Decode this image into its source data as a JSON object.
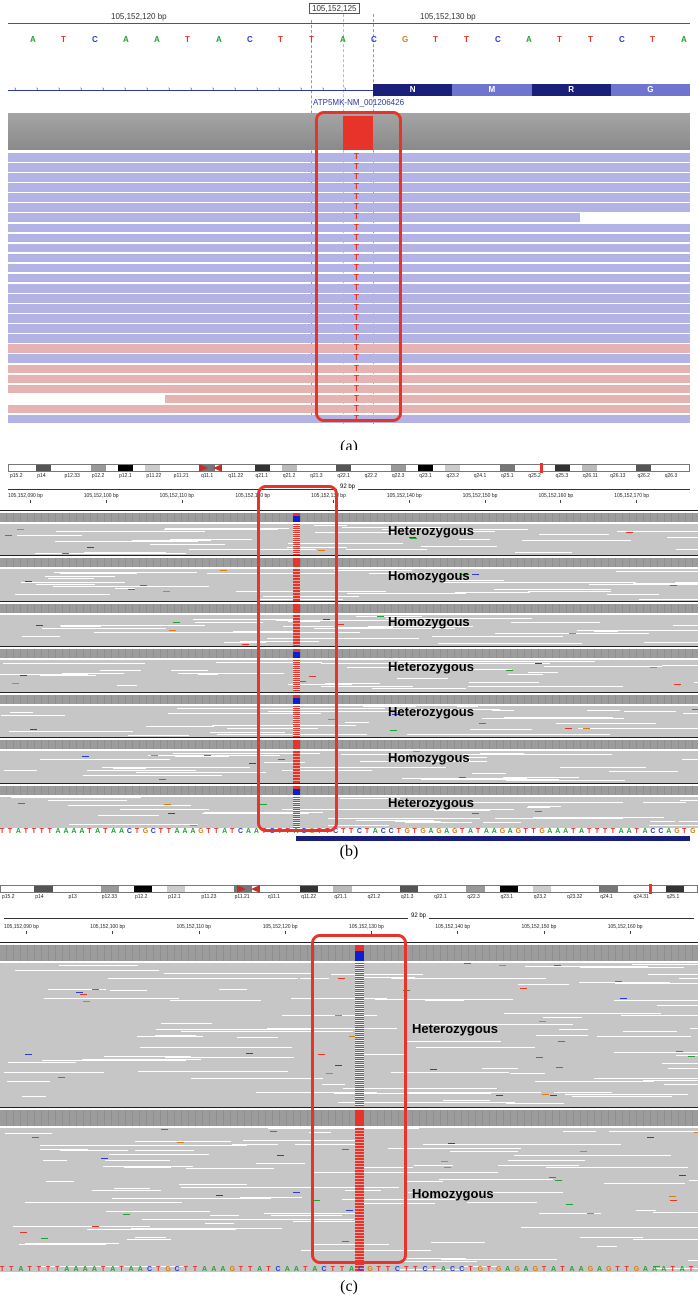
{
  "panel_a": {
    "coord_left": "105,152,120 bp",
    "coord_center": "105,152,125",
    "coord_right": "105,152,130 bp",
    "sequence": [
      "A",
      "T",
      "C",
      "A",
      "A",
      "T",
      "A",
      "C",
      "T",
      "T",
      "A",
      "C",
      "G",
      "T",
      "T",
      "C",
      "A",
      "T",
      "T",
      "C",
      "T",
      "A",
      "C"
    ],
    "gene_label": "ATP5MK-NM_001206426",
    "amino_acids": [
      "N",
      "M",
      "R",
      "G"
    ],
    "variant_base": "T",
    "read_count": 27,
    "caption": "(a)"
  },
  "panel_b": {
    "span_label": "92 bp",
    "cytobands": [
      "p15.2",
      "p14",
      "p12.33",
      "p12.2",
      "p12.1",
      "p11.22",
      "p11.21",
      "q11.1",
      "q11.22",
      "q21.1",
      "q21.2",
      "q21.3",
      "q22.1",
      "q22.2",
      "q22.3",
      "q23.1",
      "q23.2",
      "q24.1",
      "q25.1",
      "q25.2",
      "q25.3",
      "q26.11",
      "q26.13",
      "q26.2",
      "q26.3"
    ],
    "coords": [
      "105,152,090 bp",
      "105,152,100 bp",
      "105,152,110 bp",
      "105,152,120 bp",
      "105,152,130 bp",
      "105,152,140 bp",
      "105,152,150 bp",
      "105,152,160 bp",
      "105,152,170 bp"
    ],
    "samples": [
      {
        "genotype": "Heterozygous"
      },
      {
        "genotype": "Homozygous"
      },
      {
        "genotype": "Homozygous"
      },
      {
        "genotype": "Heterozygous"
      },
      {
        "genotype": "Heterozygous"
      },
      {
        "genotype": "Homozygous"
      },
      {
        "genotype": "Heterozygous"
      }
    ],
    "ref_sequence": "TTATTTTAAAATATAACTGCTTAAAGTTATCAATCTTACGTTCTTCTACCTGTGAGAGTATAAGAGTTGAAATATTTTAATACCAGTG",
    "caption": "(b)"
  },
  "panel_c": {
    "span_label": "92 bp",
    "cytobands": [
      "p15.2",
      "p14",
      "p13",
      "p12.33",
      "p12.2",
      "p12.1",
      "p11.23",
      "p11.21",
      "q11.1",
      "q11.22",
      "q21.1",
      "q21.2",
      "q21.3",
      "q22.1",
      "q22.3",
      "q23.1",
      "q23.2",
      "q23.32",
      "q24.1",
      "q24.31",
      "q25.1"
    ],
    "coords": [
      "105,152,090 bp",
      "105,152,100 bp",
      "105,152,110 bp",
      "105,152,120 bp",
      "105,152,130 bp",
      "105,152,140 bp",
      "105,152,150 bp",
      "105,152,160 bp"
    ],
    "samples": [
      {
        "genotype": "Heterozygous"
      },
      {
        "genotype": "Homozygous"
      }
    ],
    "ref_sequence": "TTATTTTAAAATATAACTGCTTAAAGTTATCAATACTTACGTTCTTCTACCTGTGAGAGTATAAGAGTTGAAATAT",
    "caption": "(c)"
  },
  "colors": {
    "highlight": "#e8332b",
    "read_forward": "#b3b3e6",
    "read_reverse": "#e6b3b3",
    "read_gray": "#c0c0c0",
    "coverage": "#999999",
    "alt_ref": "#0a1fd6"
  }
}
